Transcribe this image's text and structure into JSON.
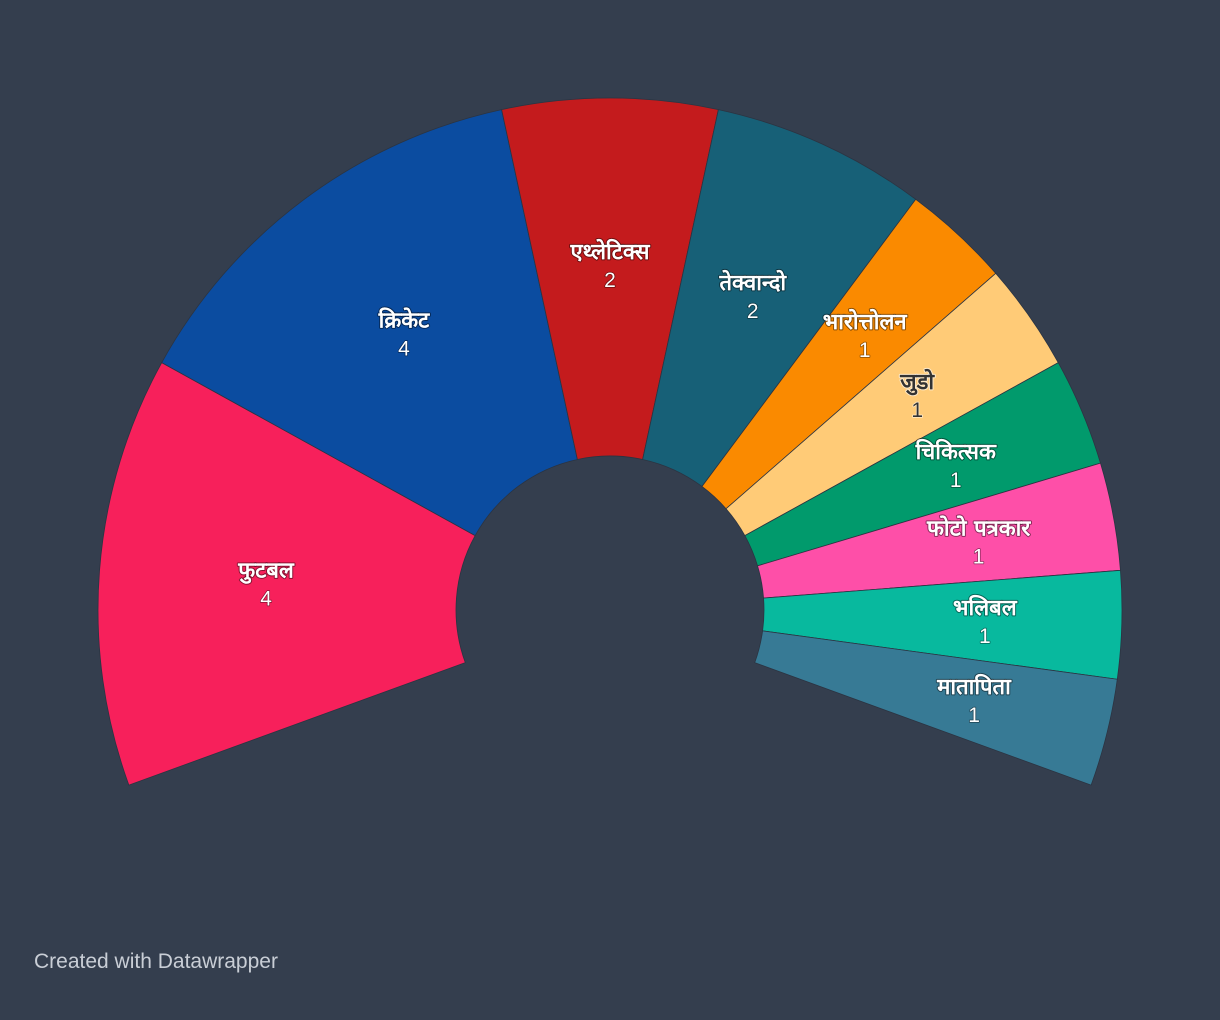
{
  "chart_data": {
    "type": "pie",
    "variant": "semi-circle donut (arc)",
    "categories": [
      "फुटबल",
      "क्रिकेट",
      "एथ्लेटिक्स",
      "तेक्वान्दो",
      "भारोत्तोलन",
      "जुडो",
      "चिकित्सक",
      "फोटो पत्रकार",
      "भलिबल",
      "मातापिता"
    ],
    "values": [
      4,
      4,
      2,
      2,
      1,
      1,
      1,
      1,
      1,
      1
    ],
    "colors": [
      "#f7205b",
      "#0b4ca0",
      "#c41b1d",
      "#176077",
      "#fa8a00",
      "#ffcb77",
      "#019a6c",
      "#fe4fa8",
      "#08b99e",
      "#377a95"
    ],
    "label_colors": [
      "#ffffff",
      "#ffffff",
      "#ffffff",
      "#ffffff",
      "#ffffff",
      "#333333",
      "#ffffff",
      "#ffffff",
      "#ffffff",
      "#ffffff"
    ],
    "start_angle_deg": -110,
    "end_angle_deg": 110,
    "title": "",
    "legend": "none"
  },
  "footer": {
    "credit": "Created with Datawrapper"
  },
  "background_color": "#343e4e"
}
